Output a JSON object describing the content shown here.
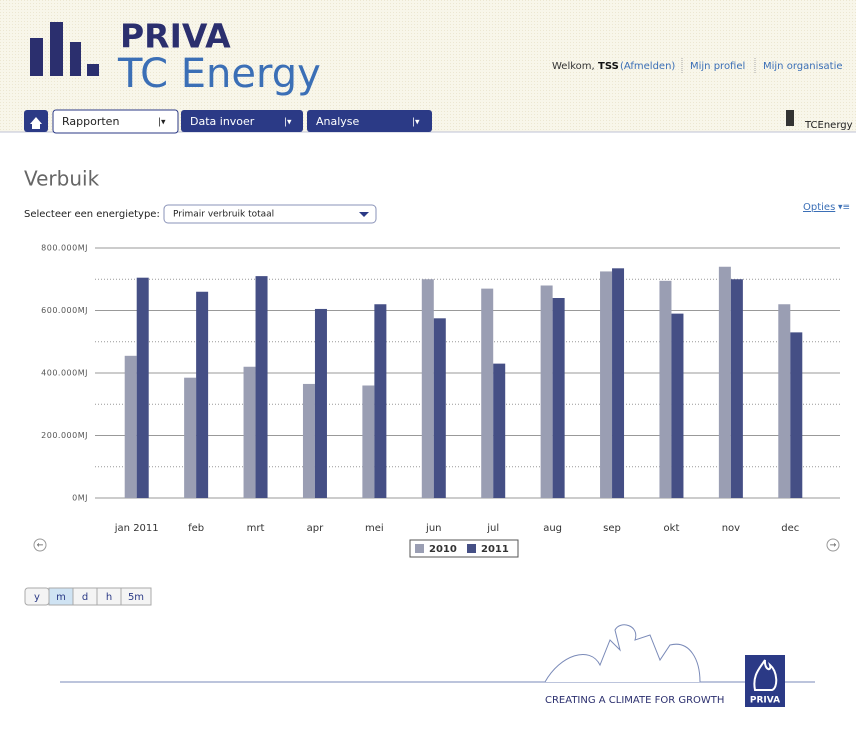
{
  "header": {
    "brand": "PRIVA",
    "product": "TC Energy",
    "welcome": "Welkom,",
    "user": "TSS",
    "logout": "(Afmelden)",
    "profile": "Mijn profiel",
    "organisation": "Mijn organisatie"
  },
  "nav": {
    "tabs": [
      "Rapporten",
      "Data invoer",
      "Analyse"
    ],
    "site": "TCEnergy"
  },
  "page": {
    "title": "Verbuik",
    "select_label": "Selecteer een energietype:",
    "select_value": "Primair verbruik totaal",
    "options": "Opties"
  },
  "chart_data": {
    "type": "bar",
    "categories": [
      "jan 2011",
      "feb",
      "mrt",
      "apr",
      "mei",
      "jun",
      "jul",
      "aug",
      "sep",
      "okt",
      "nov",
      "dec"
    ],
    "series": [
      {
        "name": "2010",
        "color": "#9a9eb3",
        "values": [
          455000,
          385000,
          420000,
          365000,
          360000,
          700000,
          670000,
          680000,
          725000,
          695000,
          740000,
          620000
        ]
      },
      {
        "name": "2011",
        "color": "#454f85",
        "values": [
          705000,
          660000,
          710000,
          605000,
          620000,
          575000,
          430000,
          640000,
          735000,
          590000,
          700000,
          530000
        ]
      }
    ],
    "ylim": [
      0,
      800000
    ],
    "yticks": [
      {
        "value": 0,
        "label": "0MJ"
      },
      {
        "value": 200000,
        "label": "200.000MJ"
      },
      {
        "value": 400000,
        "label": "400.000MJ"
      },
      {
        "value": 600000,
        "label": "600.000MJ"
      },
      {
        "value": 800000,
        "label": "800.000MJ"
      }
    ],
    "minor_yticks": [
      100000,
      300000,
      500000,
      700000
    ],
    "grid": true
  },
  "zoom_buttons": [
    "y",
    "m",
    "d",
    "h",
    "5m"
  ],
  "footer": {
    "slogan": "CREATING A CLIMATE FOR GROWTH",
    "logo": "PRIVA"
  }
}
